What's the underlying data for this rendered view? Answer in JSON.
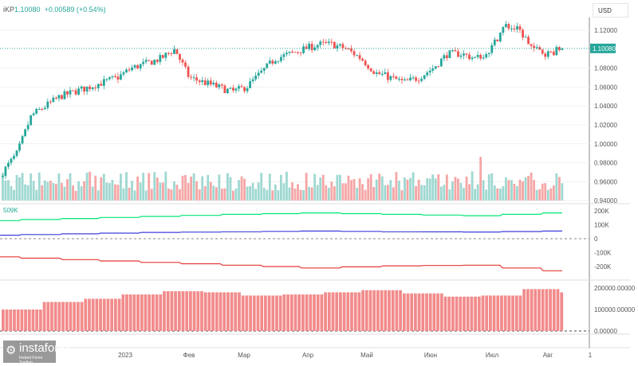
{
  "header": {
    "symbol": "іKP",
    "price": "1.10080",
    "change": "+0.00589 (+0.54%)"
  },
  "currency_button": "USD",
  "logo": {
    "name": "instaforex",
    "tagline": "Instant Forex Trading"
  },
  "colors": {
    "up": "#26a69a",
    "down": "#ef5350",
    "green": "#00e676",
    "blue": "#3f3fdc",
    "red": "#e53935",
    "bars": "#f28b8b"
  },
  "chart_data": [
    {
      "type": "candlestick",
      "price_axis": {
        "ticks": [
          "1.12000",
          "1.08000",
          "1.06000",
          "1.04000",
          "1.02000",
          "1.00000",
          "0.98000",
          "0.96000",
          "0.94000"
        ],
        "range": [
          0.94,
          1.125
        ]
      },
      "last_price_label": "1.10080",
      "x_ticks": [
        "2023",
        "Фев",
        "Мар",
        "Апр",
        "Май",
        "Июн",
        "Июл",
        "Авг",
        "1"
      ],
      "approx_close_path": [
        0.97,
        0.99,
        1.03,
        1.04,
        1.05,
        1.055,
        1.06,
        1.065,
        1.07,
        1.08,
        1.085,
        1.09,
        1.1,
        1.07,
        1.065,
        1.06,
        1.055,
        1.06,
        1.075,
        1.09,
        1.095,
        1.1,
        1.105,
        1.105,
        1.1,
        1.09,
        1.075,
        1.07,
        1.065,
        1.07,
        1.08,
        1.095,
        1.095,
        1.09,
        1.1,
        1.125,
        1.12,
        1.1,
        1.095,
        1.1008
      ],
      "volume_note": "volume histogram with up/down coloring"
    },
    {
      "type": "line",
      "axis_ticks": [
        "200K",
        "100K",
        "0",
        "-100K",
        "-200K"
      ],
      "series": [
        {
          "color": "green",
          "approx": [
            130000,
            145000,
            160000,
            175000,
            185000,
            175000,
            165000,
            185000
          ]
        },
        {
          "color": "blue",
          "approx": [
            25000,
            35000,
            45000,
            50000,
            55000,
            50000,
            48000,
            55000
          ]
        },
        {
          "color": "red",
          "approx": [
            -130000,
            -150000,
            -170000,
            -190000,
            -210000,
            -195000,
            -190000,
            -230000
          ]
        }
      ]
    },
    {
      "type": "bar",
      "axis_ticks": [
        "200000.00000",
        "100000.00000",
        "0.00000"
      ],
      "approx_values": [
        100000,
        135000,
        150000,
        170000,
        185000,
        180000,
        165000,
        170000,
        180000,
        190000,
        175000,
        160000,
        165000,
        195000,
        180000
      ]
    }
  ]
}
